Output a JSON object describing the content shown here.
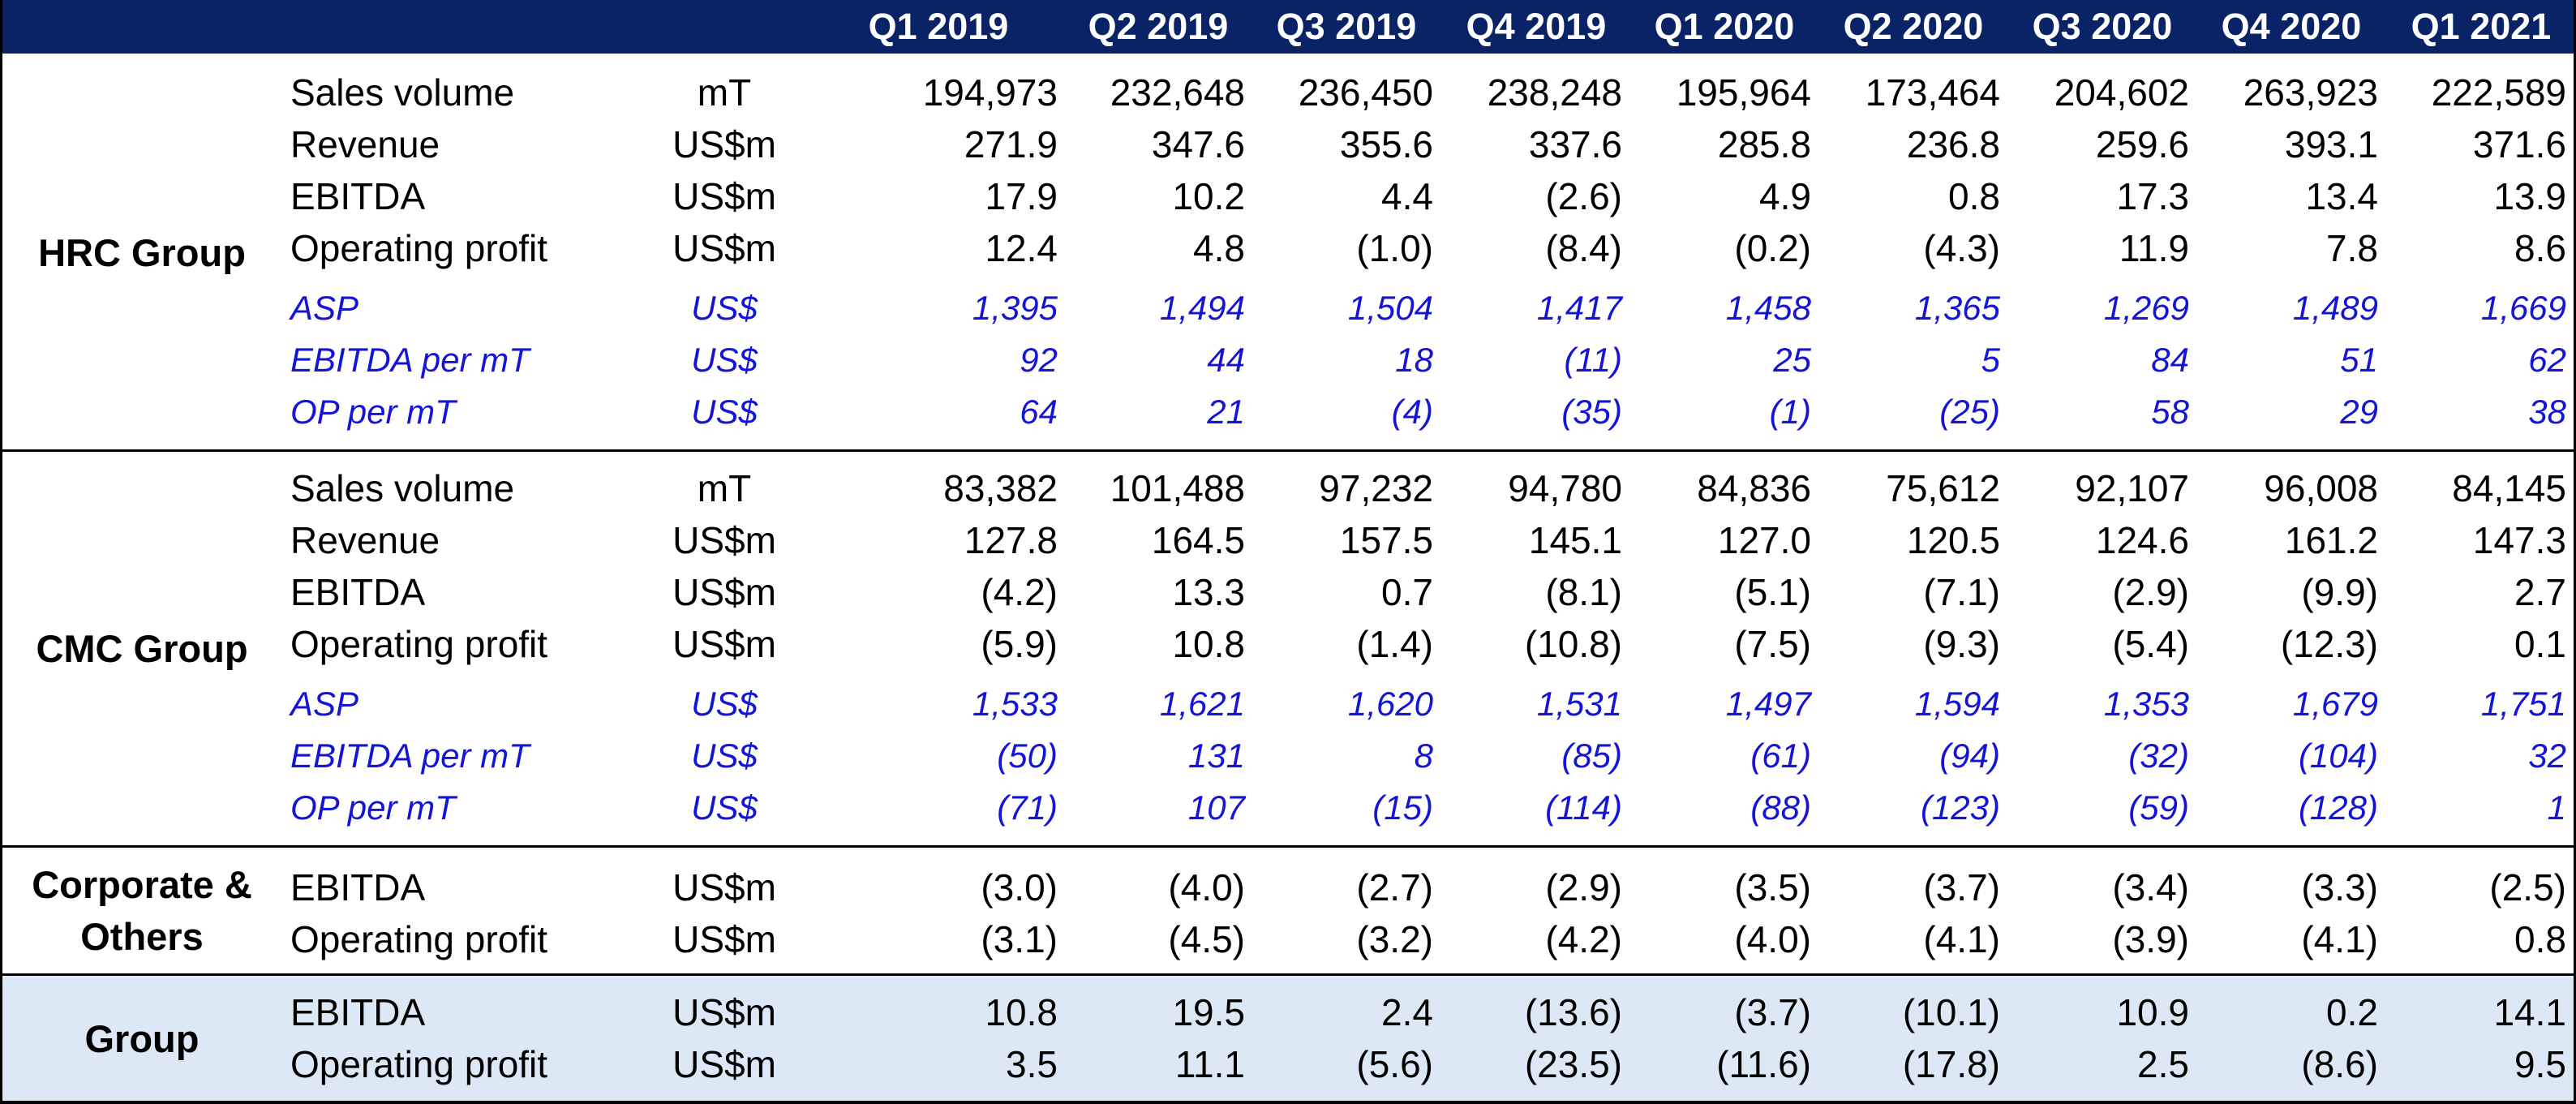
{
  "header": {
    "quarters": [
      "Q1 2019",
      "Q2 2019",
      "Q3 2019",
      "Q4 2019",
      "Q1 2020",
      "Q2 2020",
      "Q3 2020",
      "Q4 2020",
      "Q1 2021"
    ]
  },
  "groups": {
    "hrc": {
      "name": "HRC Group",
      "rows": [
        {
          "label": "Sales volume",
          "unit": "mT",
          "values": [
            "194,973",
            "232,648",
            "236,450",
            "238,248",
            "195,964",
            "173,464",
            "204,602",
            "263,923",
            "222,589"
          ]
        },
        {
          "label": "Revenue",
          "unit": "US$m",
          "values": [
            "271.9",
            "347.6",
            "355.6",
            "337.6",
            "285.8",
            "236.8",
            "259.6",
            "393.1",
            "371.6"
          ]
        },
        {
          "label": "EBITDA",
          "unit": "US$m",
          "values": [
            "17.9",
            "10.2",
            "4.4",
            "(2.6)",
            "4.9",
            "0.8",
            "17.3",
            "13.4",
            "13.9"
          ]
        },
        {
          "label": "Operating profit",
          "unit": "US$m",
          "values": [
            "12.4",
            "4.8",
            "(1.0)",
            "(8.4)",
            "(0.2)",
            "(4.3)",
            "11.9",
            "7.8",
            "8.6"
          ]
        },
        {
          "label": "ASP",
          "unit": "US$",
          "values": [
            "1,395",
            "1,494",
            "1,504",
            "1,417",
            "1,458",
            "1,365",
            "1,269",
            "1,489",
            "1,669"
          ]
        },
        {
          "label": "EBITDA per mT",
          "unit": "US$",
          "values": [
            "92",
            "44",
            "18",
            "(11)",
            "25",
            "5",
            "84",
            "51",
            "62"
          ]
        },
        {
          "label": "OP per mT",
          "unit": "US$",
          "values": [
            "64",
            "21",
            "(4)",
            "(35)",
            "(1)",
            "(25)",
            "58",
            "29",
            "38"
          ]
        }
      ]
    },
    "cmc": {
      "name": "CMC Group",
      "rows": [
        {
          "label": "Sales volume",
          "unit": "mT",
          "values": [
            "83,382",
            "101,488",
            "97,232",
            "94,780",
            "84,836",
            "75,612",
            "92,107",
            "96,008",
            "84,145"
          ]
        },
        {
          "label": "Revenue",
          "unit": "US$m",
          "values": [
            "127.8",
            "164.5",
            "157.5",
            "145.1",
            "127.0",
            "120.5",
            "124.6",
            "161.2",
            "147.3"
          ]
        },
        {
          "label": "EBITDA",
          "unit": "US$m",
          "values": [
            "(4.2)",
            "13.3",
            "0.7",
            "(8.1)",
            "(5.1)",
            "(7.1)",
            "(2.9)",
            "(9.9)",
            "2.7"
          ]
        },
        {
          "label": "Operating profit",
          "unit": "US$m",
          "values": [
            "(5.9)",
            "10.8",
            "(1.4)",
            "(10.8)",
            "(7.5)",
            "(9.3)",
            "(5.4)",
            "(12.3)",
            "0.1"
          ]
        },
        {
          "label": "ASP",
          "unit": "US$",
          "values": [
            "1,533",
            "1,621",
            "1,620",
            "1,531",
            "1,497",
            "1,594",
            "1,353",
            "1,679",
            "1,751"
          ]
        },
        {
          "label": "EBITDA per mT",
          "unit": "US$",
          "values": [
            "(50)",
            "131",
            "8",
            "(85)",
            "(61)",
            "(94)",
            "(32)",
            "(104)",
            "32"
          ]
        },
        {
          "label": "OP per mT",
          "unit": "US$",
          "values": [
            "(71)",
            "107",
            "(15)",
            "(114)",
            "(88)",
            "(123)",
            "(59)",
            "(128)",
            "1"
          ]
        }
      ]
    },
    "corp": {
      "name_line1": "Corporate &",
      "name_line2": "Others",
      "rows": [
        {
          "label": "EBITDA",
          "unit": "US$m",
          "values": [
            "(3.0)",
            "(4.0)",
            "(2.7)",
            "(2.9)",
            "(3.5)",
            "(3.7)",
            "(3.4)",
            "(3.3)",
            "(2.5)"
          ]
        },
        {
          "label": "Operating profit",
          "unit": "US$m",
          "values": [
            "(3.1)",
            "(4.5)",
            "(3.2)",
            "(4.2)",
            "(4.0)",
            "(4.1)",
            "(3.9)",
            "(4.1)",
            "0.8"
          ]
        }
      ]
    },
    "group": {
      "name": "Group",
      "rows": [
        {
          "label": "EBITDA",
          "unit": "US$m",
          "values": [
            "10.8",
            "19.5",
            "2.4",
            "(13.6)",
            "(3.7)",
            "(10.1)",
            "10.9",
            "0.2",
            "14.1"
          ]
        },
        {
          "label": "Operating profit",
          "unit": "US$m",
          "values": [
            "3.5",
            "11.1",
            "(5.6)",
            "(23.5)",
            "(11.6)",
            "(17.8)",
            "2.5",
            "(8.6)",
            "9.5"
          ]
        }
      ]
    }
  },
  "colors": {
    "header_bg": "#0a2366",
    "header_text": "#ffffff",
    "kpi_text": "#1414d8",
    "group_bg": "#dce8f6"
  }
}
